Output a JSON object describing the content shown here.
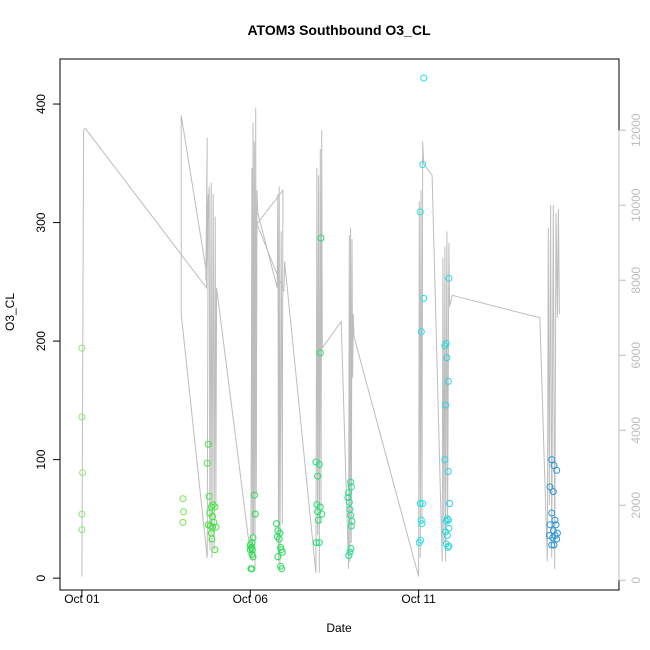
{
  "chart_data": {
    "type": "scatter",
    "title": "ATOM3 Southbound O3_CL",
    "xlabel": "Date",
    "ylabel": "O3_CL",
    "x_ticks": [
      "Oct 01",
      "Oct 06",
      "Oct 11"
    ],
    "x_tick_days": [
      1,
      6,
      11
    ],
    "xlim_days": [
      0.35,
      16.95
    ],
    "ylim": [
      -10,
      438
    ],
    "y_ticks": [
      0,
      100,
      200,
      300,
      400
    ],
    "y2_ticks": [
      0,
      2000,
      4000,
      6000,
      8000,
      10000,
      12000
    ],
    "y2lim": [
      -260,
      13900
    ],
    "y2_axis_color": "#bdbdbd",
    "line_color": "#bdbdbd",
    "grid": false,
    "series": [
      {
        "values": [
          {
            "x": 1.0,
            "y": 194,
            "color": "#8fe86f"
          },
          {
            "x": 1.0,
            "y": 136,
            "color": "#8fe86f"
          },
          {
            "x": 1.02,
            "y": 89,
            "color": "#8fe86f"
          },
          {
            "x": 1.0,
            "y": 54,
            "color": "#8fe86f"
          },
          {
            "x": 1.0,
            "y": 41,
            "color": "#8fe86f"
          },
          {
            "x": 4.0,
            "y": 67,
            "color": "#6fe84a"
          },
          {
            "x": 4.02,
            "y": 56,
            "color": "#6fe84a"
          },
          {
            "x": 4.0,
            "y": 47,
            "color": "#6fe84a"
          },
          {
            "x": 4.75,
            "y": 113,
            "color": "#3fe63a"
          },
          {
            "x": 4.72,
            "y": 97,
            "color": "#3fe63a"
          },
          {
            "x": 4.78,
            "y": 69,
            "color": "#3fe63a"
          },
          {
            "x": 4.9,
            "y": 62,
            "color": "#3fe63a"
          },
          {
            "x": 4.85,
            "y": 60,
            "color": "#3fe63a"
          },
          {
            "x": 4.95,
            "y": 60,
            "color": "#3fe63a"
          },
          {
            "x": 4.8,
            "y": 55,
            "color": "#3fe63a"
          },
          {
            "x": 4.88,
            "y": 52,
            "color": "#3fe63a"
          },
          {
            "x": 4.92,
            "y": 47,
            "color": "#3fe63a"
          },
          {
            "x": 4.75,
            "y": 45,
            "color": "#3fe63a"
          },
          {
            "x": 4.82,
            "y": 44,
            "color": "#3fe63a"
          },
          {
            "x": 4.88,
            "y": 43,
            "color": "#3fe63a"
          },
          {
            "x": 4.98,
            "y": 43,
            "color": "#3fe63a"
          },
          {
            "x": 4.84,
            "y": 38,
            "color": "#3fe63a"
          },
          {
            "x": 4.86,
            "y": 33,
            "color": "#3fe63a"
          },
          {
            "x": 4.95,
            "y": 24,
            "color": "#3fe63a"
          },
          {
            "x": 6.12,
            "y": 70,
            "color": "#24e04a"
          },
          {
            "x": 6.15,
            "y": 54,
            "color": "#24e04a"
          },
          {
            "x": 6.08,
            "y": 34,
            "color": "#24e04a"
          },
          {
            "x": 6.05,
            "y": 30,
            "color": "#24e04a"
          },
          {
            "x": 6.0,
            "y": 28,
            "color": "#24e04a"
          },
          {
            "x": 6.03,
            "y": 26,
            "color": "#24e04a"
          },
          {
            "x": 6.0,
            "y": 24,
            "color": "#24e04a"
          },
          {
            "x": 6.06,
            "y": 24,
            "color": "#24e04a"
          },
          {
            "x": 6.05,
            "y": 20,
            "color": "#24e04a"
          },
          {
            "x": 6.08,
            "y": 18,
            "color": "#24e04a"
          },
          {
            "x": 6.02,
            "y": 8,
            "color": "#24e04a"
          },
          {
            "x": 6.05,
            "y": 8,
            "color": "#24e04a"
          },
          {
            "x": 6.78,
            "y": 46,
            "color": "#22e058"
          },
          {
            "x": 6.82,
            "y": 40,
            "color": "#22e058"
          },
          {
            "x": 6.88,
            "y": 38,
            "color": "#22e058"
          },
          {
            "x": 6.8,
            "y": 35,
            "color": "#22e058"
          },
          {
            "x": 6.86,
            "y": 33,
            "color": "#22e058"
          },
          {
            "x": 6.9,
            "y": 26,
            "color": "#22e058"
          },
          {
            "x": 6.92,
            "y": 24,
            "color": "#22e058"
          },
          {
            "x": 6.95,
            "y": 22,
            "color": "#22e058"
          },
          {
            "x": 6.82,
            "y": 18,
            "color": "#22e058"
          },
          {
            "x": 6.9,
            "y": 10,
            "color": "#22e058"
          },
          {
            "x": 6.93,
            "y": 8,
            "color": "#22e058"
          },
          {
            "x": 8.1,
            "y": 287,
            "color": "#22e070"
          },
          {
            "x": 8.08,
            "y": 190,
            "color": "#22e070"
          },
          {
            "x": 7.95,
            "y": 98,
            "color": "#22e070"
          },
          {
            "x": 8.05,
            "y": 96,
            "color": "#22e070"
          },
          {
            "x": 8.0,
            "y": 86,
            "color": "#22e070"
          },
          {
            "x": 7.98,
            "y": 62,
            "color": "#22e070"
          },
          {
            "x": 8.08,
            "y": 60,
            "color": "#22e070"
          },
          {
            "x": 8.0,
            "y": 56,
            "color": "#22e070"
          },
          {
            "x": 8.12,
            "y": 54,
            "color": "#22e070"
          },
          {
            "x": 8.02,
            "y": 49,
            "color": "#22e070"
          },
          {
            "x": 7.96,
            "y": 30,
            "color": "#22e070"
          },
          {
            "x": 8.05,
            "y": 30,
            "color": "#22e070"
          },
          {
            "x": 8.98,
            "y": 81,
            "color": "#22e08a"
          },
          {
            "x": 9.0,
            "y": 77,
            "color": "#22e08a"
          },
          {
            "x": 8.92,
            "y": 72,
            "color": "#22e08a"
          },
          {
            "x": 8.9,
            "y": 68,
            "color": "#22e08a"
          },
          {
            "x": 8.94,
            "y": 64,
            "color": "#22e08a"
          },
          {
            "x": 8.96,
            "y": 58,
            "color": "#22e08a"
          },
          {
            "x": 8.98,
            "y": 53,
            "color": "#22e08a"
          },
          {
            "x": 9.02,
            "y": 48,
            "color": "#22e08a"
          },
          {
            "x": 9.0,
            "y": 44,
            "color": "#22e08a"
          },
          {
            "x": 8.99,
            "y": 25,
            "color": "#22e08a"
          },
          {
            "x": 8.96,
            "y": 22,
            "color": "#22e08a"
          },
          {
            "x": 8.93,
            "y": 19,
            "color": "#22e08a"
          },
          {
            "x": 11.15,
            "y": 422,
            "color": "#22e4e4"
          },
          {
            "x": 11.12,
            "y": 349,
            "color": "#22e4e4"
          },
          {
            "x": 11.05,
            "y": 309,
            "color": "#22e4e4"
          },
          {
            "x": 11.15,
            "y": 236,
            "color": "#22e4e4"
          },
          {
            "x": 11.08,
            "y": 208,
            "color": "#22e4e4"
          },
          {
            "x": 11.05,
            "y": 63,
            "color": "#22e4e4"
          },
          {
            "x": 11.12,
            "y": 63,
            "color": "#22e4e4"
          },
          {
            "x": 11.08,
            "y": 49,
            "color": "#22e4e4"
          },
          {
            "x": 11.1,
            "y": 46,
            "color": "#22e4e4"
          },
          {
            "x": 11.06,
            "y": 32,
            "color": "#22e4e4"
          },
          {
            "x": 11.02,
            "y": 30,
            "color": "#22e4e4"
          },
          {
            "x": 11.9,
            "y": 253,
            "color": "#22d8e0"
          },
          {
            "x": 11.82,
            "y": 198,
            "color": "#22d8e0"
          },
          {
            "x": 11.78,
            "y": 196,
            "color": "#22d8e0"
          },
          {
            "x": 11.84,
            "y": 186,
            "color": "#22d8e0"
          },
          {
            "x": 11.88,
            "y": 166,
            "color": "#22d8e0"
          },
          {
            "x": 11.8,
            "y": 146,
            "color": "#22d8e0"
          },
          {
            "x": 11.78,
            "y": 100,
            "color": "#22d8e0"
          },
          {
            "x": 11.88,
            "y": 90,
            "color": "#22d8e0"
          },
          {
            "x": 11.92,
            "y": 63,
            "color": "#22d8e0"
          },
          {
            "x": 11.85,
            "y": 50,
            "color": "#22d8e0"
          },
          {
            "x": 11.88,
            "y": 49,
            "color": "#22d8e0"
          },
          {
            "x": 11.82,
            "y": 48,
            "color": "#22d8e0"
          },
          {
            "x": 11.9,
            "y": 42,
            "color": "#22d8e0"
          },
          {
            "x": 11.8,
            "y": 39,
            "color": "#22d8e0"
          },
          {
            "x": 11.85,
            "y": 36,
            "color": "#22d8e0"
          },
          {
            "x": 11.82,
            "y": 29,
            "color": "#22d8e0"
          },
          {
            "x": 11.9,
            "y": 27,
            "color": "#22d8e0"
          },
          {
            "x": 11.87,
            "y": 26,
            "color": "#22d8e0"
          },
          {
            "x": 14.95,
            "y": 100,
            "color": "#2a96d8"
          },
          {
            "x": 15.02,
            "y": 95,
            "color": "#2a96d8"
          },
          {
            "x": 15.1,
            "y": 91,
            "color": "#2a96d8"
          },
          {
            "x": 14.9,
            "y": 77,
            "color": "#2a96d8"
          },
          {
            "x": 15.0,
            "y": 73,
            "color": "#2a96d8"
          },
          {
            "x": 14.95,
            "y": 55,
            "color": "#2a96d8"
          },
          {
            "x": 15.05,
            "y": 49,
            "color": "#2a96d8"
          },
          {
            "x": 14.9,
            "y": 45,
            "color": "#2a96d8"
          },
          {
            "x": 15.08,
            "y": 45,
            "color": "#2a96d8"
          },
          {
            "x": 15.0,
            "y": 40,
            "color": "#2a96d8"
          },
          {
            "x": 15.12,
            "y": 38,
            "color": "#2a96d8"
          },
          {
            "x": 14.88,
            "y": 36,
            "color": "#2a96d8"
          },
          {
            "x": 15.05,
            "y": 36,
            "color": "#2a96d8"
          },
          {
            "x": 14.98,
            "y": 34,
            "color": "#2a96d8"
          },
          {
            "x": 15.1,
            "y": 33,
            "color": "#2a96d8"
          },
          {
            "x": 14.95,
            "y": 28,
            "color": "#2a96d8"
          },
          {
            "x": 15.02,
            "y": 28,
            "color": "#2a96d8"
          }
        ]
      },
      {
        "type": "line",
        "axis": "y2",
        "values": [
          [
            1.0,
            100
          ],
          [
            1.05,
            12000
          ],
          [
            1.1,
            12050
          ],
          [
            4.7,
            7800
          ],
          [
            4.72,
            11800
          ],
          [
            4.68,
            8000
          ],
          [
            4.75,
            10300
          ],
          [
            4.72,
            600
          ],
          [
            3.95,
            7100
          ],
          [
            3.95,
            12400
          ],
          [
            4.7,
            8200
          ],
          [
            4.78,
            10500
          ],
          [
            4.8,
            800
          ],
          [
            4.84,
            10600
          ],
          [
            4.86,
            600
          ],
          [
            4.9,
            10300
          ],
          [
            4.93,
            800
          ],
          [
            4.96,
            9700
          ],
          [
            4.98,
            2000
          ],
          [
            5.0,
            7800
          ],
          [
            6.02,
            600
          ],
          [
            6.05,
            11000
          ],
          [
            6.06,
            500
          ],
          [
            6.08,
            12200
          ],
          [
            6.1,
            1200
          ],
          [
            6.12,
            11700
          ],
          [
            6.14,
            300
          ],
          [
            6.16,
            12600
          ],
          [
            6.18,
            2300
          ],
          [
            6.2,
            10400
          ],
          [
            6.22,
            9800
          ],
          [
            6.8,
            7800
          ],
          [
            6.82,
            10300
          ],
          [
            6.84,
            500
          ],
          [
            6.86,
            10500
          ],
          [
            6.88,
            300
          ],
          [
            6.92,
            9300
          ],
          [
            6.95,
            1500
          ],
          [
            6.97,
            10400
          ],
          [
            6.2,
            9500
          ],
          [
            7.0,
            7700
          ],
          [
            7.02,
            8500
          ],
          [
            7.95,
            200
          ],
          [
            7.98,
            11000
          ],
          [
            8.0,
            1200
          ],
          [
            8.03,
            10800
          ],
          [
            8.05,
            200
          ],
          [
            8.08,
            11500
          ],
          [
            8.1,
            1500
          ],
          [
            8.12,
            12000
          ],
          [
            8.14,
            6200
          ],
          [
            8.7,
            6900
          ],
          [
            8.92,
            300
          ],
          [
            8.94,
            9200
          ],
          [
            8.96,
            500
          ],
          [
            8.98,
            9400
          ],
          [
            9.0,
            1000
          ],
          [
            9.02,
            9100
          ],
          [
            9.04,
            5400
          ],
          [
            9.06,
            7100
          ],
          [
            9.08,
            6500
          ],
          [
            11.0,
            100
          ],
          [
            11.02,
            10100
          ],
          [
            11.05,
            600
          ],
          [
            11.07,
            10400
          ],
          [
            11.1,
            1500
          ],
          [
            11.12,
            11700
          ],
          [
            11.15,
            11100
          ],
          [
            11.4,
            10800
          ],
          [
            11.7,
            500
          ],
          [
            11.72,
            8600
          ],
          [
            11.75,
            1000
          ],
          [
            11.78,
            8900
          ],
          [
            11.8,
            500
          ],
          [
            11.84,
            9300
          ],
          [
            11.86,
            1500
          ],
          [
            11.9,
            9000
          ],
          [
            11.92,
            7300
          ],
          [
            12.0,
            7600
          ],
          [
            14.6,
            7000
          ],
          [
            14.82,
            500
          ],
          [
            14.85,
            9400
          ],
          [
            14.88,
            2000
          ],
          [
            14.92,
            10000
          ],
          [
            14.95,
            600
          ],
          [
            15.0,
            10000
          ],
          [
            15.04,
            300
          ],
          [
            15.08,
            9800
          ],
          [
            15.12,
            7000
          ],
          [
            15.15,
            9900
          ],
          [
            15.18,
            7100
          ]
        ]
      }
    ]
  }
}
